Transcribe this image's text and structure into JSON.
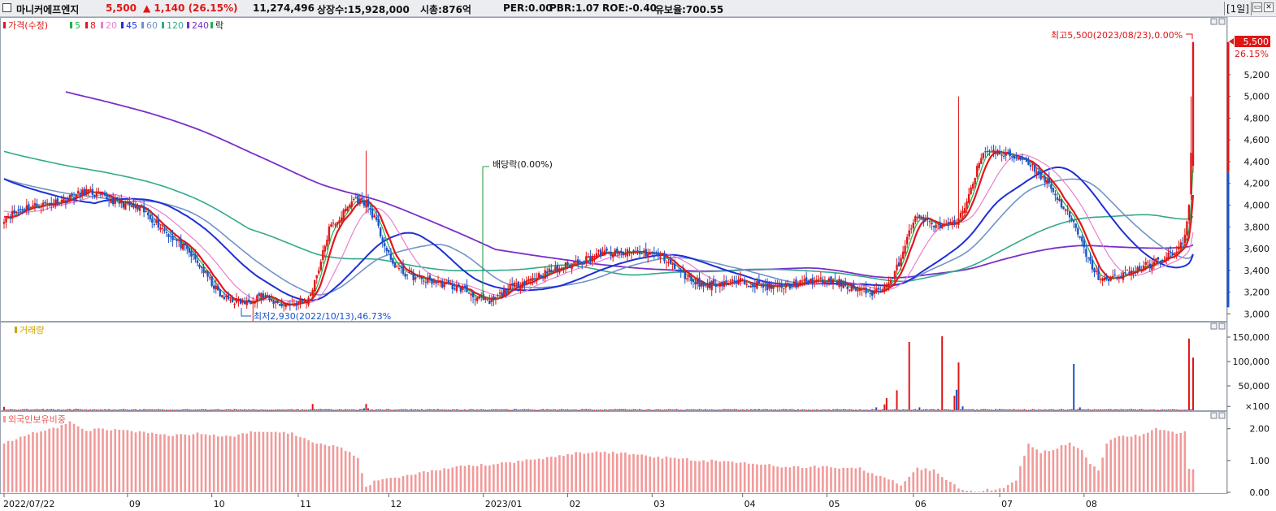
{
  "header": {
    "name": "마니커에프엔지",
    "price": "5,500",
    "change": "▲ 1,140",
    "change_pct": "(26.15%)",
    "volume": "11,274,496",
    "listed": "상장수:15,928,000",
    "market_cap": "시총:876억",
    "per": "PER:0.00",
    "pbr": "PBR:1.07",
    "roe": "ROE:-0.40",
    "float": "유보율:700.55",
    "period": "[1일]",
    "minimize_btn": "▭",
    "close_btn": "✕"
  },
  "colors": {
    "up": "#e01616",
    "down": "#1a53c8",
    "ma5": "#22b14c",
    "ma8": "#e8141c",
    "ma20": "#e97fd0",
    "ma45": "#1f2fd6",
    "ma60": "#6f94c9",
    "ma120": "#31a98a",
    "ma240": "#7a2fc8",
    "foreign": "#f29a9a"
  },
  "chart_data": [
    {
      "type": "candlestick",
      "legend": [
        "가격(수정)",
        "5",
        "8",
        "20",
        "45",
        "60",
        "120",
        "240",
        "락"
      ],
      "ylim": [
        2950,
        5700
      ],
      "yticks": [
        "3,000",
        "3,200",
        "3,400",
        "3,600",
        "3,800",
        "4,000",
        "4,200",
        "4,400",
        "4,600",
        "4,800",
        "5,000",
        "5,200"
      ],
      "ytick_values": [
        3000,
        3200,
        3400,
        3600,
        3800,
        4000,
        4200,
        4400,
        4600,
        4800,
        5000,
        5200
      ],
      "last_price": "5,500",
      "last_pct": "26.15%",
      "annotations": {
        "high": "최고5,500(2023/08/23),0.00%",
        "low": "최저2,930(2022/10/13),46.73%",
        "dividend": "배당락(0.00%)"
      },
      "price_path": [
        [
          0,
          3880
        ],
        [
          10,
          3980
        ],
        [
          20,
          4010
        ],
        [
          30,
          4050
        ],
        [
          40,
          4130
        ],
        [
          50,
          4060
        ],
        [
          60,
          4000
        ],
        [
          68,
          3940
        ],
        [
          75,
          3820
        ],
        [
          82,
          3700
        ],
        [
          90,
          3560
        ],
        [
          96,
          3420
        ],
        [
          101,
          3280
        ],
        [
          106,
          3150
        ],
        [
          112,
          3120
        ],
        [
          118,
          3100
        ],
        [
          124,
          3180
        ],
        [
          130,
          3120
        ],
        [
          136,
          3080
        ],
        [
          142,
          3100
        ],
        [
          148,
          3130
        ],
        [
          154,
          3480
        ],
        [
          158,
          3780
        ],
        [
          164,
          3900
        ],
        [
          170,
          4060
        ],
        [
          176,
          4020
        ],
        [
          180,
          3880
        ],
        [
          184,
          3680
        ],
        [
          188,
          3480
        ],
        [
          194,
          3380
        ],
        [
          200,
          3330
        ],
        [
          208,
          3300
        ],
        [
          216,
          3260
        ],
        [
          224,
          3220
        ],
        [
          230,
          3150
        ],
        [
          236,
          3100
        ],
        [
          240,
          3160
        ],
        [
          246,
          3240
        ],
        [
          252,
          3290
        ],
        [
          258,
          3340
        ],
        [
          264,
          3380
        ],
        [
          270,
          3420
        ],
        [
          276,
          3460
        ],
        [
          282,
          3500
        ],
        [
          288,
          3550
        ],
        [
          294,
          3560
        ],
        [
          300,
          3550
        ],
        [
          306,
          3570
        ],
        [
          312,
          3560
        ],
        [
          318,
          3540
        ],
        [
          322,
          3500
        ],
        [
          328,
          3380
        ],
        [
          334,
          3320
        ],
        [
          340,
          3260
        ],
        [
          346,
          3280
        ],
        [
          352,
          3290
        ],
        [
          360,
          3300
        ],
        [
          368,
          3260
        ],
        [
          376,
          3240
        ],
        [
          384,
          3270
        ],
        [
          392,
          3300
        ],
        [
          400,
          3300
        ],
        [
          406,
          3290
        ],
        [
          414,
          3220
        ],
        [
          420,
          3200
        ],
        [
          424,
          3200
        ],
        [
          428,
          3250
        ],
        [
          432,
          3320
        ],
        [
          436,
          3520
        ],
        [
          440,
          3780
        ],
        [
          444,
          3900
        ],
        [
          450,
          3840
        ],
        [
          456,
          3800
        ],
        [
          462,
          3820
        ],
        [
          466,
          3920
        ],
        [
          470,
          4180
        ],
        [
          474,
          4380
        ],
        [
          478,
          4520
        ],
        [
          484,
          4470
        ],
        [
          490,
          4450
        ],
        [
          496,
          4420
        ],
        [
          500,
          4360
        ],
        [
          504,
          4260
        ],
        [
          508,
          4200
        ],
        [
          512,
          4060
        ],
        [
          516,
          3960
        ],
        [
          520,
          3820
        ],
        [
          524,
          3640
        ],
        [
          528,
          3460
        ],
        [
          532,
          3340
        ],
        [
          536,
          3300
        ],
        [
          540,
          3340
        ],
        [
          546,
          3380
        ],
        [
          552,
          3420
        ],
        [
          558,
          3460
        ],
        [
          562,
          3500
        ],
        [
          566,
          3540
        ],
        [
          570,
          3560
        ],
        [
          574,
          3700
        ],
        [
          576,
          4000
        ],
        [
          578,
          5500
        ]
      ],
      "volume_ylim": [
        0,
        160000
      ],
      "volume_yticks": [
        "150,000",
        "100,000",
        "50,000",
        "×100"
      ],
      "volume_tick_values": [
        150000,
        100000,
        50000,
        8000
      ],
      "volume_spikes": [
        [
          0,
          7000
        ],
        [
          35,
          3000
        ],
        [
          150,
          13000
        ],
        [
          175,
          4000
        ],
        [
          176,
          13000
        ],
        [
          177,
          4000
        ],
        [
          424,
          6000
        ],
        [
          428,
          12000
        ],
        [
          429,
          25000
        ],
        [
          434,
          41000
        ],
        [
          440,
          140000
        ],
        [
          445,
          6000
        ],
        [
          456,
          152000
        ],
        [
          462,
          30000
        ],
        [
          463,
          42000
        ],
        [
          464,
          98000
        ],
        [
          466,
          8000
        ],
        [
          520,
          95000
        ],
        [
          523,
          6000
        ],
        [
          576,
          147000
        ],
        [
          578,
          108000
        ]
      ],
      "foreign_ylim": [
        0,
        2.3
      ],
      "foreign_yticks": [
        "2.00",
        "1.00",
        "0.00"
      ],
      "foreign_tick_values": [
        2,
        1,
        0
      ],
      "foreign_path": [
        [
          0,
          1.55
        ],
        [
          8,
          1.75
        ],
        [
          18,
          1.95
        ],
        [
          26,
          2.05
        ],
        [
          32,
          2.2
        ],
        [
          40,
          1.95
        ],
        [
          48,
          2.0
        ],
        [
          58,
          1.95
        ],
        [
          70,
          1.85
        ],
        [
          82,
          1.8
        ],
        [
          96,
          1.85
        ],
        [
          110,
          1.75
        ],
        [
          120,
          1.9
        ],
        [
          140,
          1.85
        ],
        [
          152,
          1.55
        ],
        [
          162,
          1.45
        ],
        [
          172,
          1.1
        ],
        [
          176,
          0.15
        ],
        [
          180,
          0.35
        ],
        [
          190,
          0.45
        ],
        [
          200,
          0.6
        ],
        [
          220,
          0.8
        ],
        [
          240,
          0.9
        ],
        [
          260,
          1.05
        ],
        [
          280,
          1.25
        ],
        [
          300,
          1.25
        ],
        [
          320,
          1.1
        ],
        [
          340,
          1.0
        ],
        [
          360,
          0.95
        ],
        [
          380,
          0.8
        ],
        [
          400,
          0.8
        ],
        [
          416,
          0.75
        ],
        [
          428,
          0.45
        ],
        [
          436,
          0.25
        ],
        [
          444,
          0.75
        ],
        [
          452,
          0.7
        ],
        [
          460,
          0.3
        ],
        [
          466,
          0.05
        ],
        [
          476,
          0.05
        ],
        [
          486,
          0.15
        ],
        [
          492,
          0.4
        ],
        [
          498,
          1.55
        ],
        [
          504,
          1.25
        ],
        [
          512,
          1.4
        ],
        [
          518,
          1.55
        ],
        [
          524,
          1.3
        ],
        [
          528,
          0.9
        ],
        [
          532,
          0.7
        ],
        [
          536,
          1.55
        ],
        [
          540,
          1.75
        ],
        [
          552,
          1.8
        ],
        [
          560,
          2.0
        ],
        [
          566,
          1.9
        ],
        [
          570,
          1.85
        ],
        [
          574,
          1.9
        ],
        [
          576,
          0.72
        ],
        [
          578,
          0.72
        ]
      ],
      "xticks": [
        [
          0,
          "2022/07/22"
        ],
        [
          60,
          "09"
        ],
        [
          101,
          "10"
        ],
        [
          143,
          "11"
        ],
        [
          187,
          "12"
        ],
        [
          233,
          "2023/01"
        ],
        [
          274,
          "02"
        ],
        [
          315,
          "03"
        ],
        [
          359,
          "04"
        ],
        [
          400,
          "05"
        ],
        [
          442,
          "06"
        ],
        [
          484,
          "07"
        ],
        [
          525,
          "08"
        ]
      ]
    },
    {
      "type": "bar",
      "title": "거래량"
    },
    {
      "type": "bar",
      "title": "외국인보유비중"
    }
  ]
}
